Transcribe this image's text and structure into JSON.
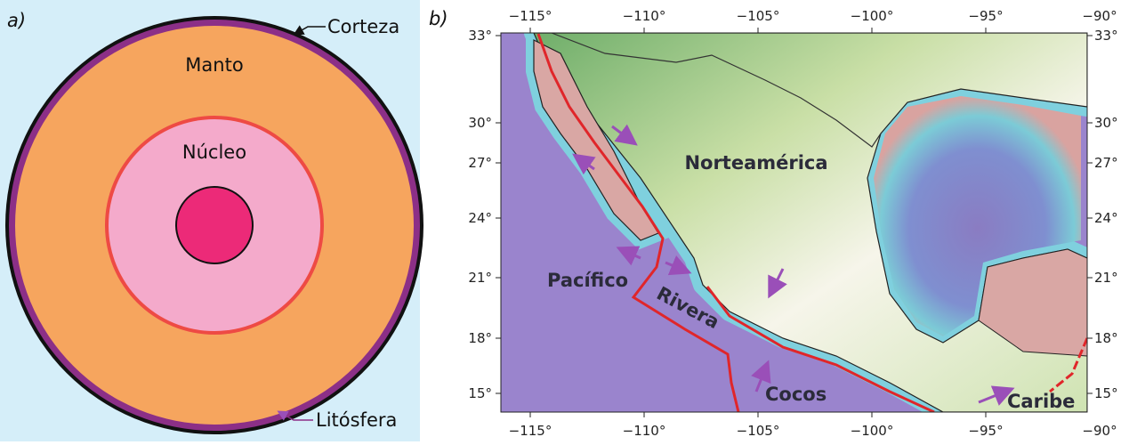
{
  "panel_a": {
    "label": "a)",
    "crust": "Corteza",
    "mantle": "Manto",
    "core": "Núcleo",
    "lithosphere": "Litósfera"
  },
  "panel_b": {
    "label": "b)",
    "lon_labels": [
      "−115°",
      "−110°",
      "−105°",
      "−100°",
      "−95°",
      "−90°"
    ],
    "lat_labels": [
      "33°",
      "30°",
      "27°",
      "24°",
      "21°",
      "18°",
      "15°"
    ],
    "regions": {
      "north_america": "Norteamérica",
      "pacific": "Pacífico",
      "rivera": "Rivera",
      "cocos": "Cocos",
      "caribbean": "Caribe"
    }
  }
}
